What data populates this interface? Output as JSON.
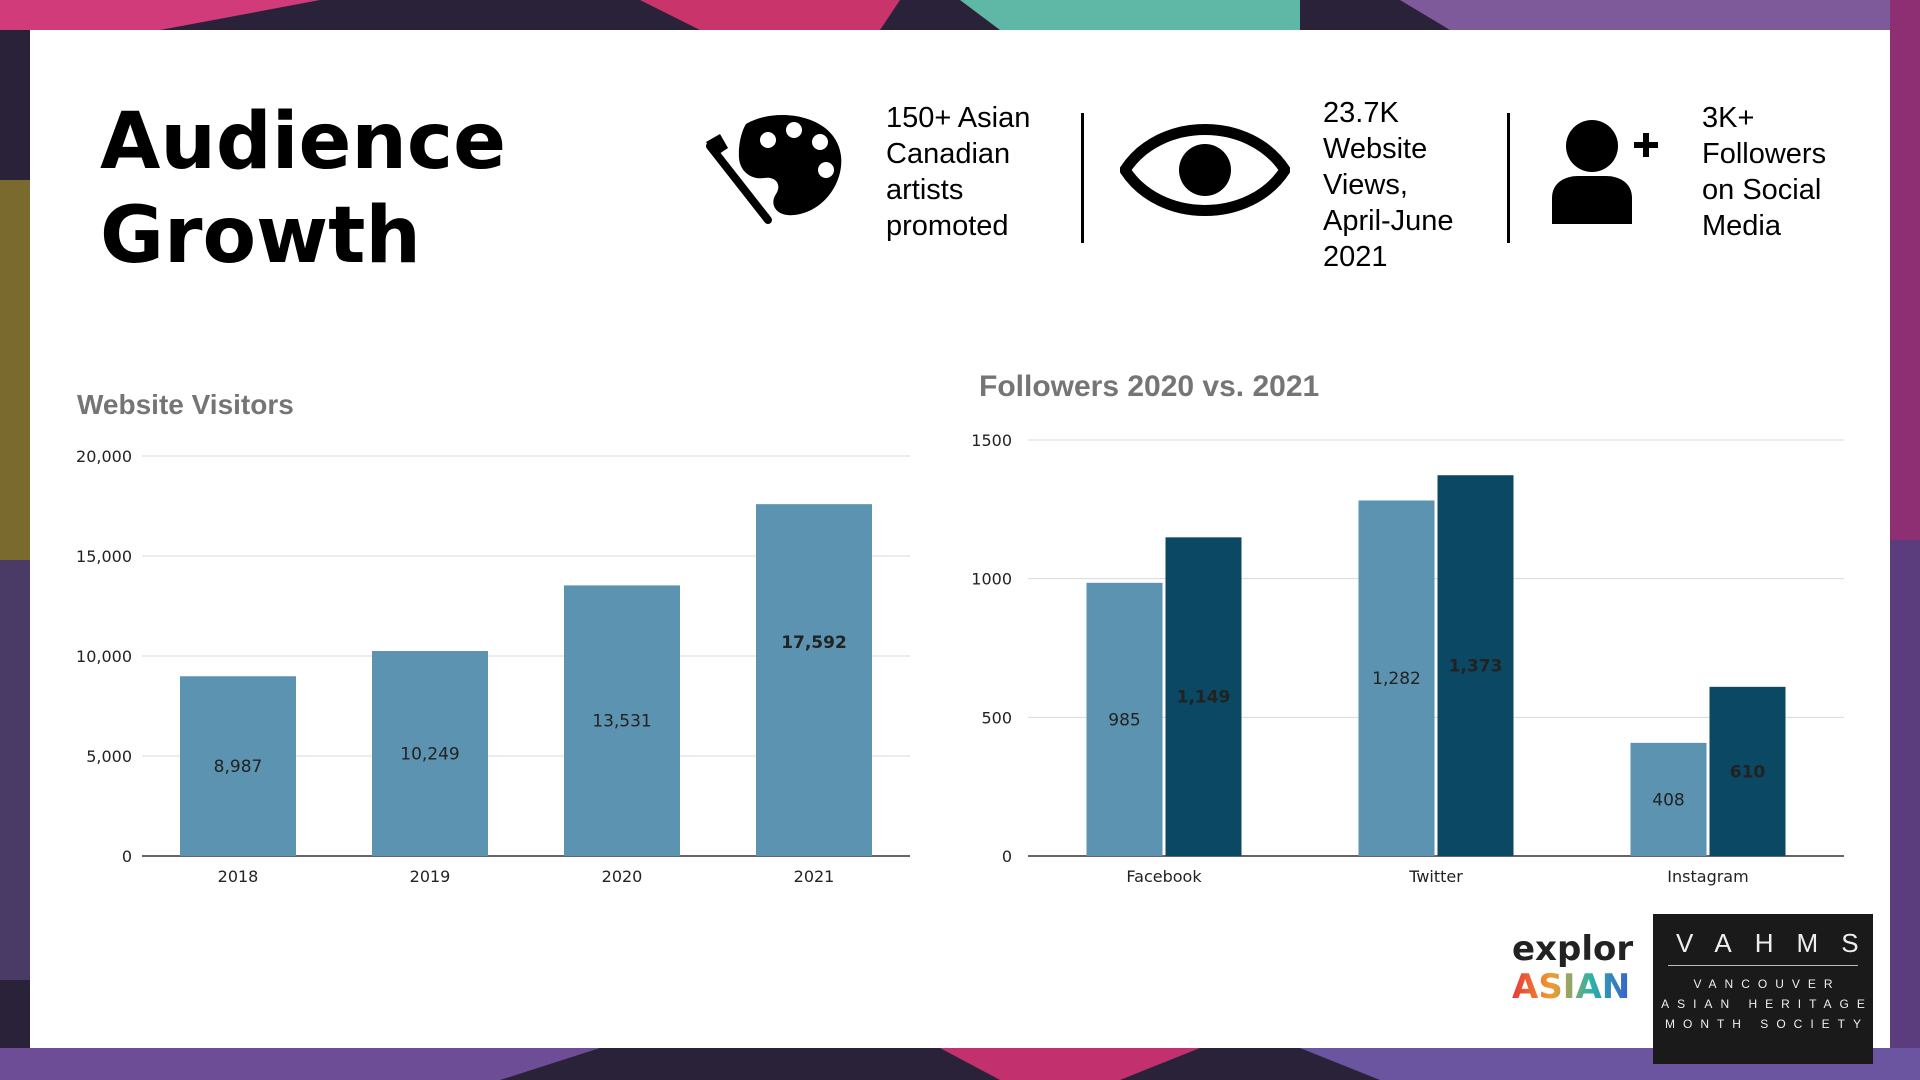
{
  "slide": {
    "title_line1": "Audience",
    "title_line2": "Growth"
  },
  "stats": [
    {
      "icon": "palette-icon",
      "lines": [
        "150+ Asian",
        "Canadian",
        "artists",
        "promoted"
      ]
    },
    {
      "icon": "eye-icon",
      "lines": [
        "23.7K",
        "Website",
        "Views,",
        "April-June",
        "2021"
      ]
    },
    {
      "icon": "add-user-icon",
      "lines": [
        "3K+",
        "Followers",
        "on Social",
        "Media"
      ]
    }
  ],
  "colors": {
    "light_bar": "#5b93b0",
    "dark_bar": "#0b4863",
    "grid": "#d9d9d9",
    "axis": "#333333"
  },
  "chart_data": [
    {
      "type": "bar",
      "title": "Website Visitors",
      "categories": [
        "2018",
        "2019",
        "2020",
        "2021"
      ],
      "values": [
        8987,
        10249,
        13531,
        17592
      ],
      "value_labels": [
        "8,987",
        "10,249",
        "13,531",
        "17,592"
      ],
      "ylim": [
        0,
        20000
      ],
      "yticks": [
        0,
        5000,
        10000,
        15000,
        20000
      ],
      "ytick_labels": [
        "0",
        "5,000",
        "10,000",
        "15,000",
        "20,000"
      ],
      "xlabel": "",
      "ylabel": "",
      "grid": true
    },
    {
      "type": "bar",
      "title": "Followers 2020 vs. 2021",
      "categories": [
        "Facebook",
        "Twitter",
        "Instagram"
      ],
      "series": [
        {
          "name": "2020",
          "values": [
            985,
            1282,
            408
          ],
          "value_labels": [
            "985",
            "1,282",
            "408"
          ]
        },
        {
          "name": "2021",
          "values": [
            1149,
            1373,
            610
          ],
          "value_labels": [
            "1,149",
            "1,373",
            "610"
          ]
        }
      ],
      "ylim": [
        0,
        1500
      ],
      "yticks": [
        0,
        500,
        1000,
        1500
      ],
      "ytick_labels": [
        "0",
        "500",
        "1000",
        "1500"
      ],
      "xlabel": "",
      "ylabel": "",
      "grid": true
    }
  ],
  "logos": {
    "explor_top": "explor",
    "explor_bottom": "ASIAN",
    "vahms_big": "VAHMS",
    "vahms_line1": "VANCOUVER",
    "vahms_line2": "ASIAN HERITAGE",
    "vahms_line3": "MONTH SOCIETY"
  }
}
